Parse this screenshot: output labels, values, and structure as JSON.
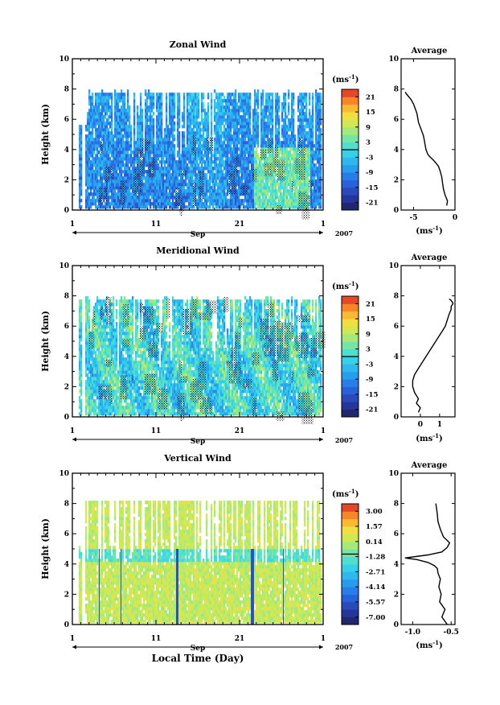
{
  "figure": {
    "xlabel": "Local Time (Day)"
  },
  "chart_data": [
    {
      "type": "heatmap",
      "title": "Zonal Wind",
      "ylabel": "Height (km)",
      "ylim": [
        0,
        10
      ],
      "yticks": [
        "0",
        "2",
        "4",
        "6",
        "8",
        "10"
      ],
      "xticks": [
        "1",
        "11",
        "21",
        "1"
      ],
      "month_label": "Sep",
      "year_label": "2007",
      "colorbar": {
        "unit": "(ms",
        "unit_exp": "-1",
        "unit_close": ")",
        "ticks": [
          "21",
          "15",
          "9",
          "3",
          "-3",
          "-9",
          "-15",
          "-21"
        ],
        "range": [
          -24,
          24
        ],
        "zero_line": 0
      },
      "profile": {
        "title": "Average",
        "xlabel": "(ms",
        "xlabel_exp": "-1",
        "xlabel_close": ")",
        "xlim": [
          -6.5,
          0
        ],
        "xticks": [
          "-5",
          "0"
        ],
        "ylim": [
          0,
          10
        ],
        "yticks": [
          "0",
          "2",
          "4",
          "6",
          "8",
          "10"
        ],
        "x": [
          -1.0,
          -0.9,
          -1.2,
          -1.4,
          -1.5,
          -1.6,
          -1.8,
          -2.0,
          -2.3,
          -2.6,
          -3.0,
          -3.3,
          -3.5,
          -3.6,
          -3.7,
          -3.8,
          -4.0,
          -4.2,
          -4.4,
          -4.5,
          -4.6,
          -4.8,
          -5.0,
          -5.3,
          -5.6,
          -5.9,
          -6.0
        ],
        "y": [
          0.3,
          0.6,
          1.0,
          1.4,
          1.8,
          2.2,
          2.6,
          2.9,
          3.1,
          3.3,
          3.5,
          3.7,
          4.0,
          4.3,
          4.6,
          4.9,
          5.2,
          5.5,
          5.8,
          6.1,
          6.4,
          6.7,
          7.0,
          7.3,
          7.5,
          7.7,
          7.8
        ]
      }
    },
    {
      "type": "heatmap",
      "title": "Meridional Wind",
      "ylabel": "Height (km)",
      "ylim": [
        0,
        10
      ],
      "yticks": [
        "0",
        "2",
        "4",
        "6",
        "8",
        "10"
      ],
      "xticks": [
        "1",
        "11",
        "21",
        "1"
      ],
      "month_label": "Sep",
      "year_label": "2007",
      "colorbar": {
        "unit": "(ms",
        "unit_exp": "-1",
        "unit_close": ")",
        "ticks": [
          "21",
          "15",
          "9",
          "3",
          "-3",
          "-9",
          "-15",
          "-21"
        ],
        "range": [
          -24,
          24
        ],
        "zero_line": 0
      },
      "profile": {
        "title": "Average",
        "xlabel": "(ms",
        "xlabel_exp": "-1",
        "xlabel_close": ")",
        "xlim": [
          -1,
          1.8
        ],
        "xticks": [
          "0",
          "1"
        ],
        "ylim": [
          0,
          10
        ],
        "yticks": [
          "0",
          "2",
          "4",
          "6",
          "8",
          "10"
        ],
        "x": [
          -0.1,
          0.0,
          -0.2,
          -0.1,
          -0.3,
          -0.4,
          -0.4,
          -0.3,
          -0.1,
          0.1,
          0.3,
          0.5,
          0.7,
          0.9,
          1.1,
          1.3,
          1.4,
          1.5,
          1.6,
          1.6,
          1.7,
          1.6,
          1.5
        ],
        "y": [
          0.3,
          0.6,
          0.9,
          1.2,
          1.6,
          2.0,
          2.4,
          2.8,
          3.2,
          3.6,
          4.0,
          4.4,
          4.8,
          5.2,
          5.6,
          6.0,
          6.4,
          6.8,
          7.1,
          7.3,
          7.5,
          7.7,
          7.8
        ]
      }
    },
    {
      "type": "heatmap",
      "title": "Vertical Wind",
      "ylabel": "Height (km)",
      "ylim": [
        0,
        10
      ],
      "yticks": [
        "0",
        "2",
        "4",
        "6",
        "8",
        "10"
      ],
      "xticks": [
        "1",
        "11",
        "21",
        "1"
      ],
      "month_label": "Sep",
      "year_label": "2007",
      "colorbar": {
        "unit": "(ms",
        "unit_exp": "-1",
        "unit_close": ")",
        "ticks": [
          "3.00",
          "1.57",
          "0.14",
          "-1.28",
          "-2.71",
          "-4.14",
          "-5.57",
          "-7.00"
        ],
        "range": [
          -7.7,
          3.7
        ],
        "zero_line": -1.05
      },
      "profile": {
        "title": "Average",
        "xlabel": "(ms",
        "xlabel_exp": "-1",
        "xlabel_close": ")",
        "xlim": [
          -1.15,
          -0.45
        ],
        "xticks": [
          "-1.0",
          "-0.5"
        ],
        "ylim": [
          0,
          10
        ],
        "yticks": [
          "0",
          "2",
          "4",
          "6",
          "8",
          "10"
        ],
        "x": [
          -0.55,
          -0.62,
          -0.58,
          -0.65,
          -0.63,
          -0.66,
          -0.64,
          -0.67,
          -0.68,
          -0.72,
          -0.8,
          -0.95,
          -1.1,
          -0.8,
          -0.62,
          -0.55,
          -0.52,
          -0.6,
          -0.64,
          -0.67,
          -0.68,
          -0.69,
          -0.7
        ],
        "y": [
          0.0,
          0.5,
          1.0,
          1.5,
          2.0,
          2.5,
          3.0,
          3.4,
          3.7,
          3.9,
          4.1,
          4.3,
          4.4,
          4.6,
          4.8,
          5.1,
          5.4,
          5.8,
          6.3,
          6.8,
          7.3,
          7.7,
          8.0
        ]
      }
    }
  ]
}
